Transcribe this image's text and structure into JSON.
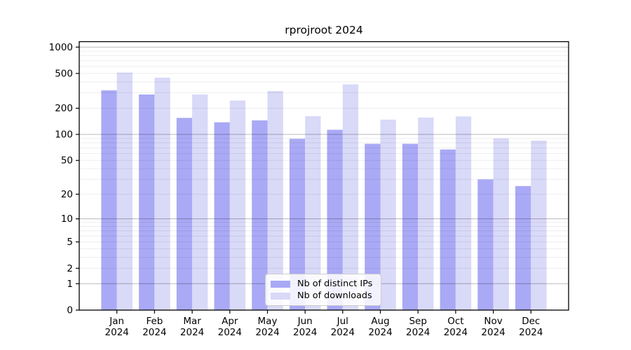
{
  "title": "rprojroot 2024",
  "chart_data": {
    "type": "bar",
    "title": "rprojroot 2024",
    "categories": [
      "Jan 2024",
      "Feb 2024",
      "Mar 2024",
      "Apr 2024",
      "May 2024",
      "Jun 2024",
      "Jul 2024",
      "Aug 2024",
      "Sep 2024",
      "Oct 2024",
      "Nov 2024",
      "Dec 2024"
    ],
    "series": [
      {
        "name": "Nb of distinct IPs",
        "color": "#a9a9f6",
        "values": [
          320,
          287,
          155,
          138,
          145,
          89,
          113,
          78,
          78,
          67,
          30,
          25
        ]
      },
      {
        "name": "Nb of downloads",
        "color": "#d9d9f8",
        "values": [
          512,
          448,
          288,
          245,
          315,
          162,
          375,
          148,
          156,
          161,
          90,
          85
        ]
      }
    ],
    "xlabel": "",
    "ylabel": "",
    "yscale": "log1p",
    "ylim": [
      0,
      1000
    ],
    "yticks": [
      1000,
      500,
      200,
      100,
      50,
      20,
      10,
      5,
      2,
      1,
      0
    ],
    "grid": "horizontal major (decades) + minor, drawn over bars",
    "legend_position": "lower center inside plot",
    "colors": {
      "axis": "#000000",
      "grid_major": "rgba(0,0,0,0.28)",
      "grid_minor": "rgba(0,0,0,0.07)",
      "legend_border": "#cccccc"
    }
  },
  "legend": {
    "items": [
      {
        "label": "Nb of distinct IPs"
      },
      {
        "label": "Nb of downloads"
      }
    ]
  }
}
